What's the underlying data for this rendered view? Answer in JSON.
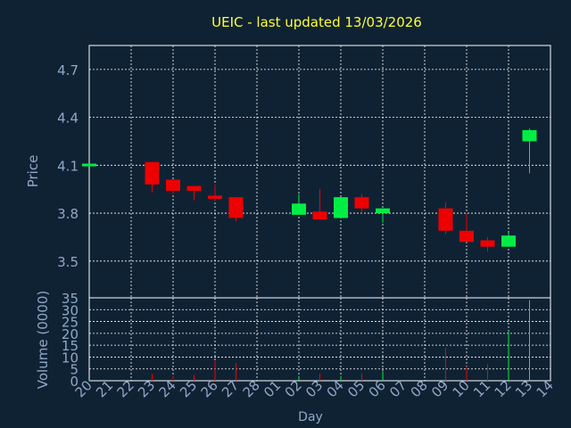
{
  "chart_data": {
    "type": "candlestick",
    "title": "UEIC - last updated 13/03/2026",
    "xlabel": "Day",
    "price_panel": {
      "ylabel": "Price",
      "ylim": [
        3.27,
        4.85
      ],
      "yticks": [
        3.5,
        3.8,
        4.1,
        4.4,
        4.7
      ],
      "ytick_labels": [
        "3.5",
        "3.8",
        "4.1",
        "4.4",
        "4.7"
      ],
      "grid": true
    },
    "volume_panel": {
      "ylabel": "Volume (0000)",
      "ylim": [
        0,
        35
      ],
      "yticks": [
        0,
        5,
        10,
        15,
        20,
        25,
        30,
        35
      ],
      "ytick_labels": [
        "0",
        "5",
        "10",
        "15",
        "20",
        "25",
        "30",
        "35"
      ],
      "grid": true
    },
    "x_tick_labels": [
      "20",
      "21",
      "22",
      "23",
      "24",
      "25",
      "26",
      "27",
      "28",
      "01",
      "02",
      "03",
      "04",
      "05",
      "06",
      "07",
      "08",
      "09",
      "10",
      "11",
      "12",
      "13",
      "14"
    ],
    "x_grid_every": 2,
    "colors": {
      "background": "#0f2233",
      "up": "#00ee44",
      "down": "#ee0000",
      "grid": "#ffffff",
      "axis_text": "#8fa8c8",
      "title": "#ffff33"
    },
    "candles": [
      {
        "day": "20",
        "open": 4.1,
        "close": 4.11,
        "high": 4.11,
        "low": 4.1,
        "volume": 0.3
      },
      {
        "day": "23",
        "open": 4.12,
        "close": 3.98,
        "high": 4.12,
        "low": 3.93,
        "volume": 3.0
      },
      {
        "day": "24",
        "open": 4.01,
        "close": 3.94,
        "high": 4.01,
        "low": 3.92,
        "volume": 2.0
      },
      {
        "day": "25",
        "open": 3.97,
        "close": 3.94,
        "high": 3.97,
        "low": 3.88,
        "volume": 2.5
      },
      {
        "day": "26",
        "open": 3.91,
        "close": 3.89,
        "high": 3.98,
        "low": 3.88,
        "volume": 8.5
      },
      {
        "day": "27",
        "open": 3.9,
        "close": 3.77,
        "high": 3.9,
        "low": 3.75,
        "volume": 7.5
      },
      {
        "day": "02",
        "open": 3.79,
        "close": 3.86,
        "high": 3.92,
        "low": 3.79,
        "volume": 2.0
      },
      {
        "day": "03",
        "open": 3.81,
        "close": 3.76,
        "high": 3.95,
        "low": 3.76,
        "volume": 3.0
      },
      {
        "day": "04",
        "open": 3.77,
        "close": 3.9,
        "high": 3.9,
        "low": 3.77,
        "volume": 2.0
      },
      {
        "day": "05",
        "open": 3.9,
        "close": 3.83,
        "high": 3.92,
        "low": 3.8,
        "volume": 3.0
      },
      {
        "day": "06",
        "open": 3.8,
        "close": 3.83,
        "high": 3.83,
        "low": 3.74,
        "volume": 4.0
      },
      {
        "day": "09",
        "open": 3.83,
        "close": 3.69,
        "high": 3.87,
        "low": 3.67,
        "volume": 14.0
      },
      {
        "day": "10",
        "open": 3.69,
        "close": 3.62,
        "high": 3.8,
        "low": 3.62,
        "volume": 6.0
      },
      {
        "day": "11",
        "open": 3.63,
        "close": 3.59,
        "high": 3.65,
        "low": 3.56,
        "volume": 7.0
      },
      {
        "day": "12",
        "open": 3.59,
        "close": 3.66,
        "high": 3.68,
        "low": 3.59,
        "volume": 21.0
      },
      {
        "day": "13",
        "open": 4.25,
        "close": 4.32,
        "high": 4.33,
        "low": 4.05,
        "volume": 34.0
      }
    ]
  }
}
